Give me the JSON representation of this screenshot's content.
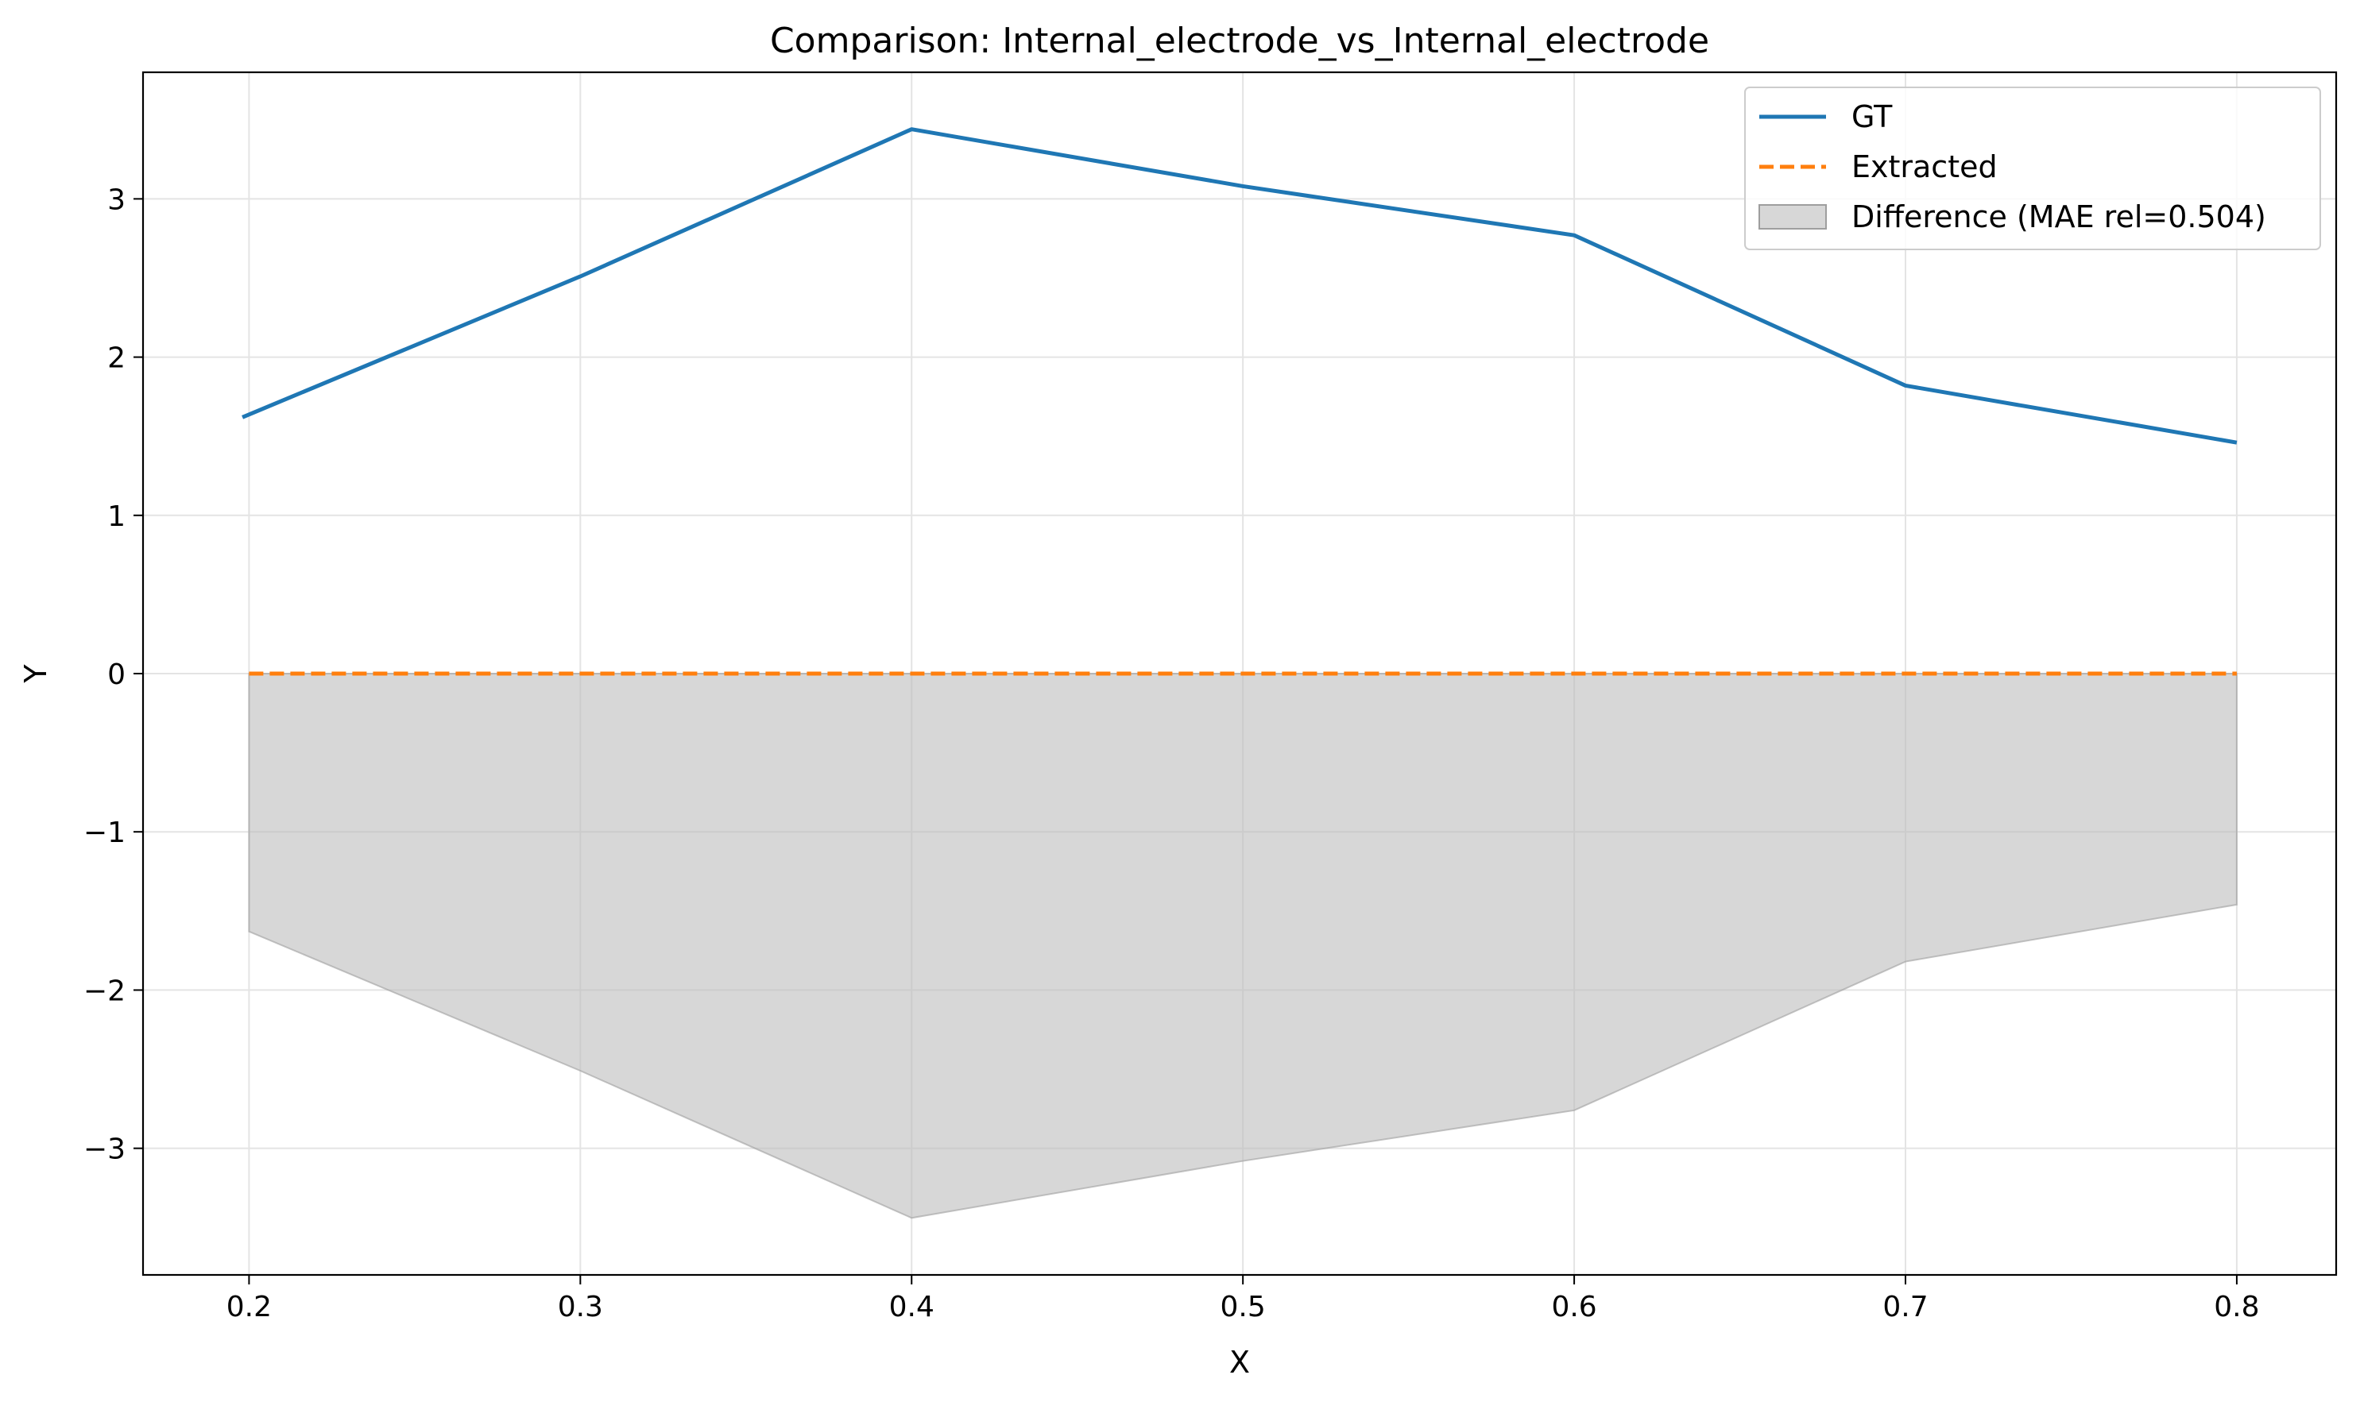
{
  "chart_data": {
    "type": "line",
    "title": "Comparison: Internal_electrode_vs_Internal_electrode",
    "xlabel": "X",
    "ylabel": "Y",
    "xlim": [
      0.168,
      0.83
    ],
    "ylim": [
      -3.8,
      3.8
    ],
    "xticks": [
      0.2,
      0.3,
      0.4,
      0.5,
      0.6,
      0.7,
      0.8
    ],
    "xtick_labels": [
      "0.2",
      "0.3",
      "0.4",
      "0.5",
      "0.6",
      "0.7",
      "0.8"
    ],
    "yticks": [
      -3,
      -2,
      -1,
      0,
      1,
      2,
      3
    ],
    "ytick_labels": [
      "−3",
      "−2",
      "−1",
      "0",
      "1",
      "2",
      "3"
    ],
    "grid": true,
    "legend_position": "top-right",
    "series": [
      {
        "name": "GT",
        "style": "solid",
        "color": "#1f77b4",
        "x": [
          0.198,
          0.3,
          0.4,
          0.5,
          0.6,
          0.7,
          0.8
        ],
        "y": [
          1.62,
          2.51,
          3.44,
          3.08,
          2.77,
          1.82,
          1.46
        ]
      },
      {
        "name": "Extracted",
        "style": "dashed",
        "color": "#ff7f0e",
        "x": [
          0.2,
          0.3,
          0.4,
          0.5,
          0.6,
          0.7,
          0.8
        ],
        "y": [
          0,
          0,
          0,
          0,
          0,
          0,
          0
        ]
      }
    ],
    "difference": {
      "name": "Difference (MAE rel=0.504)",
      "color": "#bdbdbd",
      "x": [
        0.2,
        0.3,
        0.4,
        0.5,
        0.6,
        0.7,
        0.8
      ],
      "upper": [
        0,
        0,
        0,
        0,
        0,
        0,
        0
      ],
      "lower": [
        -1.63,
        -2.51,
        -3.44,
        -3.08,
        -2.76,
        -1.82,
        -1.46
      ]
    }
  }
}
